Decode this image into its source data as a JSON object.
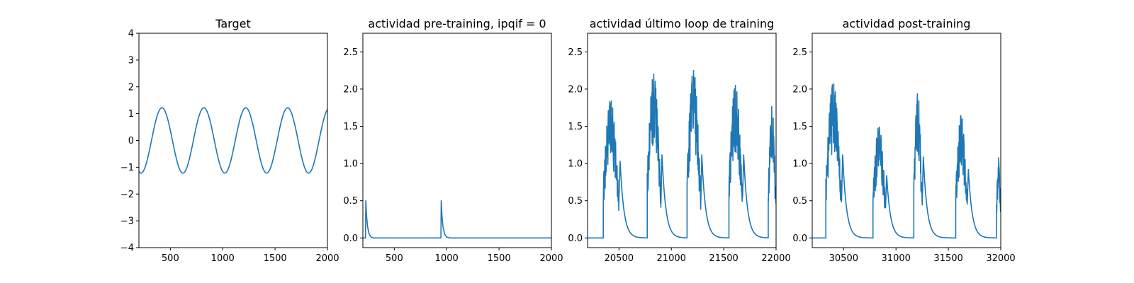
{
  "figure": {
    "background": "#ffffff",
    "line_color": "#1f77b4"
  },
  "chart_data": [
    {
      "type": "line",
      "title": "Target",
      "xlabel": "",
      "ylabel": "",
      "xlim": [
        200,
        2000
      ],
      "ylim": [
        -4,
        4
      ],
      "xticks": [
        500,
        1000,
        1500,
        2000
      ],
      "yticks": [
        -4,
        -3,
        -2,
        -1,
        0,
        1,
        2,
        3,
        4
      ],
      "grid": false,
      "series": [
        {
          "values_model": "sine",
          "amplitude": 1.22,
          "period": 400,
          "phase_min_x": 220,
          "x_start": 200,
          "x_end": 2000
        }
      ]
    },
    {
      "type": "line",
      "title": "actividad pre-training, ipqif = 0",
      "xlabel": "",
      "ylabel": "",
      "xlim": [
        200,
        2000
      ],
      "ylim": [
        -0.13,
        2.75
      ],
      "xticks": [
        500,
        1000,
        1500,
        2000
      ],
      "yticks": [
        0.0,
        0.5,
        1.0,
        1.5,
        2.0,
        2.5
      ],
      "grid": false,
      "series": [
        {
          "x": [
            200,
            225,
            228,
            235,
            245,
            260,
            280,
            300,
            945,
            948,
            955,
            965,
            980,
            1000,
            1030,
            2000
          ],
          "values": [
            0,
            0,
            0.5,
            0.3,
            0.15,
            0.05,
            0.01,
            0,
            0,
            0.5,
            0.3,
            0.15,
            0.05,
            0.01,
            0,
            0
          ]
        }
      ]
    },
    {
      "type": "line",
      "title": "actividad último loop de training",
      "xlabel": "",
      "ylabel": "",
      "xlim": [
        20200,
        22000
      ],
      "ylim": [
        -0.13,
        2.75
      ],
      "xticks": [
        20500,
        21000,
        21500,
        22000
      ],
      "yticks": [
        0.0,
        0.5,
        1.0,
        1.5,
        2.0,
        2.5
      ],
      "grid": false,
      "series": [
        {
          "bursts": [
            {
              "start": 20350,
              "end": 20500,
              "peak": 1.85,
              "base": 0.4
            },
            {
              "start": 20770,
              "end": 20900,
              "peak": 2.2,
              "base": 0.5
            },
            {
              "start": 21150,
              "end": 21280,
              "peak": 2.25,
              "base": 0.5
            },
            {
              "start": 21550,
              "end": 21680,
              "peak": 2.05,
              "base": 0.45
            },
            {
              "start": 21925,
              "end": 22000,
              "peak": 1.77,
              "base": 0.3
            }
          ],
          "decay_length": 80
        }
      ]
    },
    {
      "type": "line",
      "title": "actividad post-training",
      "xlabel": "",
      "ylabel": "",
      "xlim": [
        30200,
        32000
      ],
      "ylim": [
        -0.13,
        2.75
      ],
      "xticks": [
        30500,
        31000,
        31500,
        32000
      ],
      "yticks": [
        0.0,
        0.5,
        1.0,
        1.5,
        2.0,
        2.5
      ],
      "grid": false,
      "series": [
        {
          "bursts": [
            {
              "start": 30330,
              "end": 30480,
              "peak": 2.08,
              "base": 0.4
            },
            {
              "start": 30780,
              "end": 30900,
              "peak": 1.5,
              "base": 0.4
            },
            {
              "start": 31170,
              "end": 31250,
              "peak": 1.95,
              "base": 0.4
            },
            {
              "start": 31570,
              "end": 31680,
              "peak": 1.65,
              "base": 0.35
            },
            {
              "start": 31960,
              "end": 32000,
              "peak": 1.08,
              "base": 0.3
            }
          ],
          "decay_length": 80
        }
      ]
    }
  ]
}
